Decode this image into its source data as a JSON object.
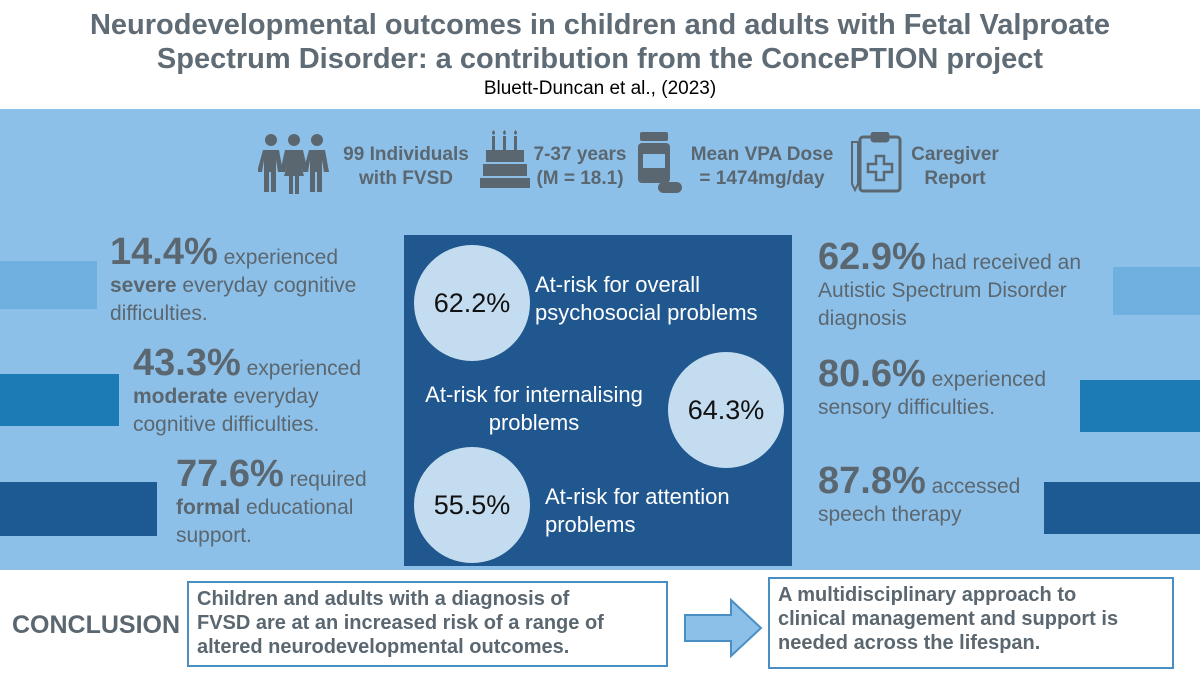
{
  "header": {
    "title_line1": "Neurodevelopmental outcomes in children and adults with Fetal Valproate",
    "title_line2": "Spectrum Disorder: a contribution from the ConcePTION project",
    "authors": "Bluett-Duncan et al., (2023)"
  },
  "summary": [
    {
      "icon": "people-icon",
      "line1": "99  Individuals",
      "line2": "with FVSD"
    },
    {
      "icon": "birthday-cake-icon",
      "line1": "7-37 years",
      "line2": "(M = 18.1)"
    },
    {
      "icon": "medicine-bottle-icon",
      "line1": "Mean VPA Dose",
      "line2": "= 1474mg/day"
    },
    {
      "icon": "clipboard-medical-icon",
      "line1": "Caregiver",
      "line2": "Report"
    }
  ],
  "left_stats": [
    {
      "pct": "14.4%",
      "text_a": " experienced",
      "bold": "severe",
      "text_b": " everyday cognitive",
      "text_c": "difficulties."
    },
    {
      "pct": "43.3%",
      "text_a": " experienced",
      "bold": "moderate",
      "text_b": " everyday",
      "text_c": "cognitive difficulties."
    },
    {
      "pct": "77.6%",
      "text_a": " required",
      "bold": "formal",
      "text_b": " educational",
      "text_c": "support."
    }
  ],
  "center_stats": [
    {
      "pct": "62.2%",
      "line1": "At-risk for overall",
      "line2": "psychosocial problems"
    },
    {
      "pct": "64.3%",
      "line1": "At-risk for internalising",
      "line2": "problems"
    },
    {
      "pct": "55.5%",
      "line1": "At-risk for attention",
      "line2": "problems"
    }
  ],
  "right_stats": [
    {
      "pct": "62.9%",
      "text_a": " had received an",
      "line2": "Autistic Spectrum Disorder",
      "line3": "diagnosis"
    },
    {
      "pct": "80.6%",
      "text_a": " experienced",
      "line2": "sensory difficulties.",
      "line3": ""
    },
    {
      "pct": "87.8%",
      "text_a": " accessed",
      "line2": "speech therapy",
      "line3": ""
    }
  ],
  "conclusion": {
    "label": "CONCLUSION",
    "box1": [
      "Children and adults with a diagnosis of",
      "FVSD are at an increased risk of a range of",
      "altered neurodevelopmental outcomes."
    ],
    "box2": [
      "A multidisciplinary approach to",
      "clinical management and support is",
      "needed across the lifespan."
    ]
  },
  "colors": {
    "band": "#8dc0e8",
    "center_panel": "#20578e",
    "bar_light": "#6fb0e0",
    "bar_mid": "#1c7ab5",
    "bar_dark": "#1d5a94"
  }
}
